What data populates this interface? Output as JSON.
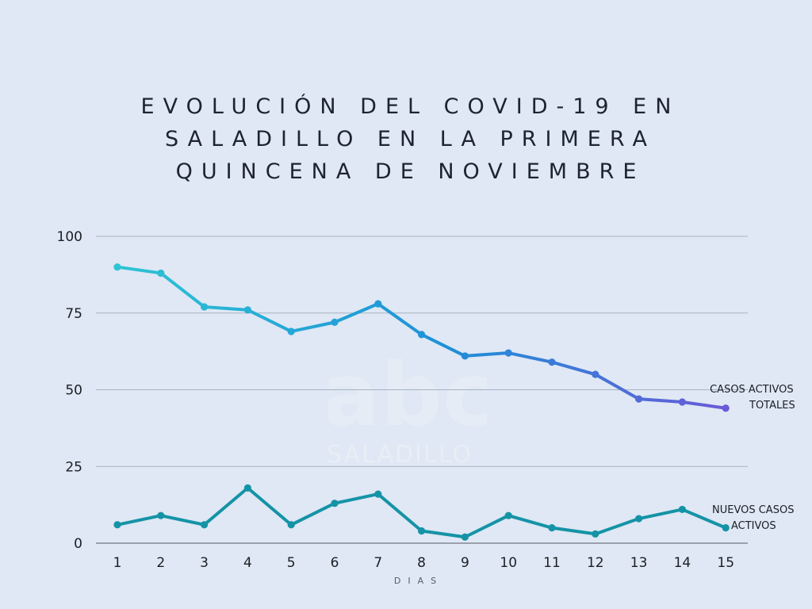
{
  "title_lines": [
    "EVOLUCIÓN DEL COVID-19 EN",
    "SALADILLO EN LA PRIMERA",
    "QUINCENA DE NOVIEMBRE"
  ],
  "watermark": {
    "logo_text": "abc",
    "text": "SALADILLO"
  },
  "chart_data": {
    "type": "line",
    "title": "EVOLUCIÓN DEL COVID-19 EN SALADILLO EN LA PRIMERA QUINCENA DE NOVIEMBRE",
    "xlabel": "DIAS",
    "ylabel": "",
    "categories": [
      "1",
      "2",
      "3",
      "4",
      "5",
      "6",
      "7",
      "8",
      "9",
      "10",
      "11",
      "12",
      "13",
      "14",
      "15"
    ],
    "ylim": [
      0,
      100
    ],
    "yticks": [
      0,
      25,
      50,
      75,
      100
    ],
    "grid": true,
    "legend": "inline-right",
    "series": [
      {
        "name": "CASOS ACTIVOS TOTALES",
        "label_lines": [
          "CASOS ACTIVOS",
          "TOTALES"
        ],
        "values": [
          90,
          88,
          77,
          76,
          69,
          72,
          78,
          68,
          61,
          62,
          59,
          55,
          47,
          46,
          44
        ],
        "color_start": "#2ec4d4",
        "color_end": "#6a5ad8"
      },
      {
        "name": "NUEVOS CASOS ACTIVOS",
        "label_lines": [
          "NUEVOS CASOS",
          "ACTIVOS"
        ],
        "values": [
          6,
          9,
          6,
          18,
          6,
          13,
          16,
          4,
          2,
          9,
          5,
          3,
          8,
          11,
          5
        ],
        "color": "#1593a6"
      }
    ]
  },
  "colors": {
    "background": "#dfe8f4",
    "grid": "#a8b3c2",
    "axis": "#6f7680"
  }
}
